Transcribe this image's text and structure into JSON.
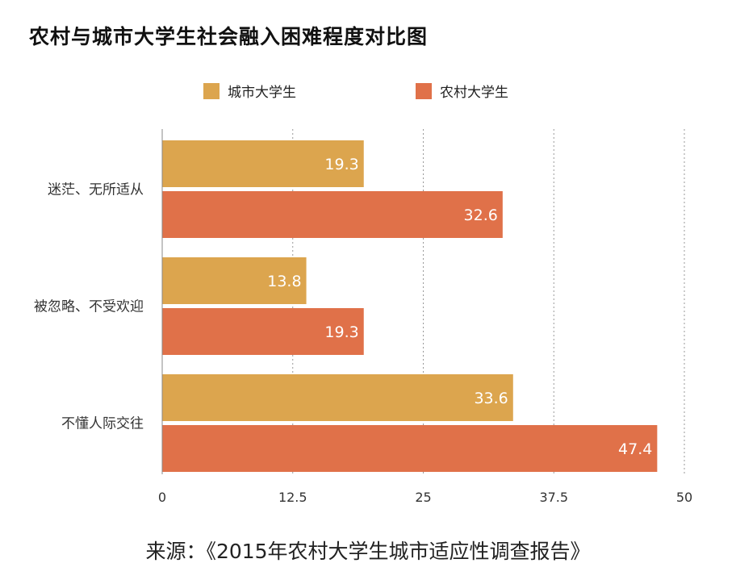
{
  "title": "农村与城市大学生社会融入困难程度对比图",
  "source": "来源：《2015年农村大学生城市适应性调查报告》",
  "colors": {
    "city": "#DCA54E",
    "rural": "#E07149",
    "grid": "#999999",
    "axis": "#888888",
    "bar_label": "#ffffff",
    "text": "#333333"
  },
  "chart_data": {
    "type": "bar",
    "orientation": "horizontal",
    "categories": [
      "迷茫、无所适从",
      "被忽略、不受欢迎",
      "不懂人际交往"
    ],
    "series": [
      {
        "name": "城市大学生",
        "color": "#DCA54E",
        "values": [
          19.3,
          13.8,
          33.6
        ]
      },
      {
        "name": "农村大学生",
        "color": "#E07149",
        "values": [
          32.6,
          19.3,
          47.4
        ]
      }
    ],
    "x_ticks": [
      "0",
      "12.5",
      "25",
      "37.5",
      "50"
    ],
    "xlim": [
      0,
      50
    ],
    "grid": true,
    "legend_position": "top-center",
    "data_labels": true
  }
}
